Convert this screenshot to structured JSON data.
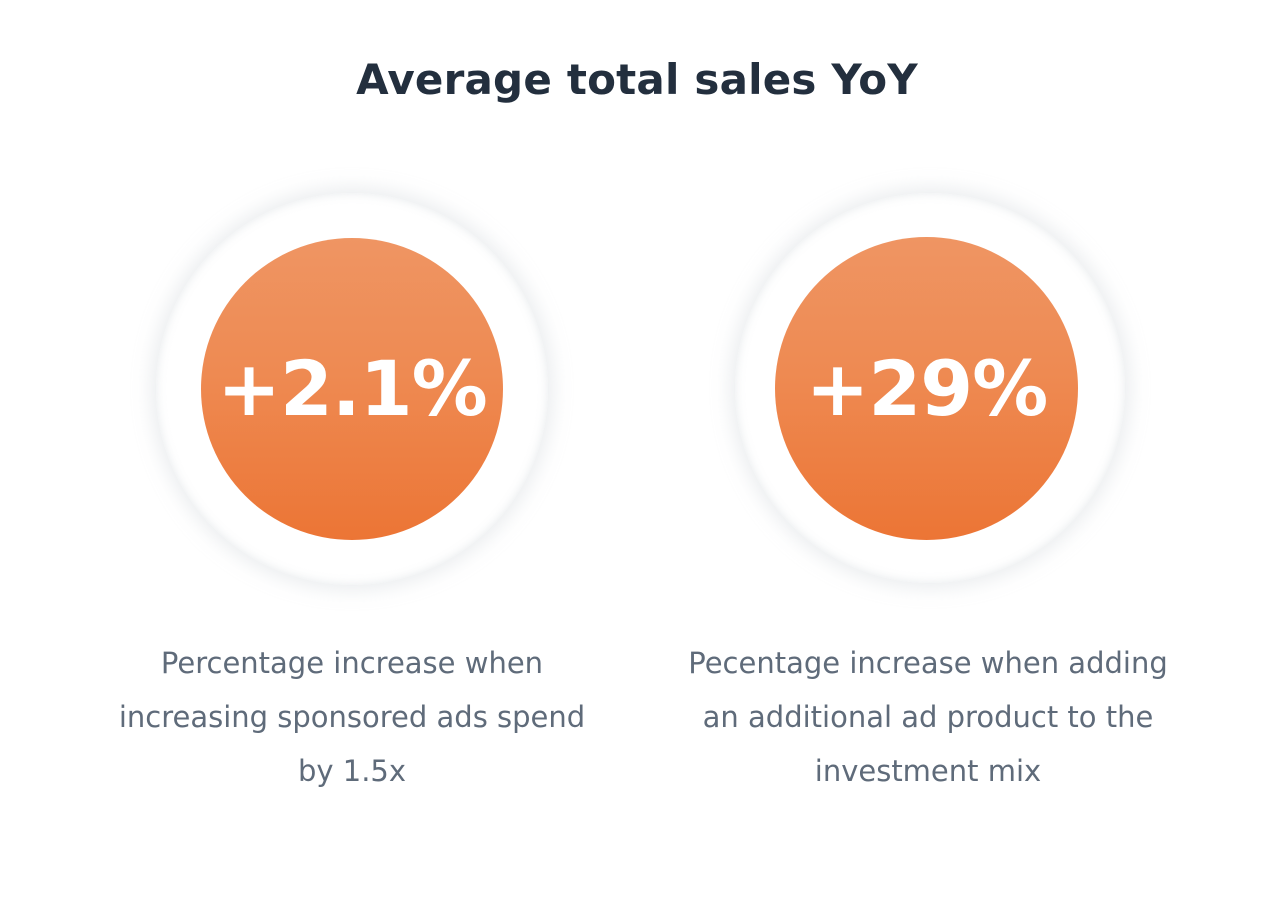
{
  "title": "Average total sales YoY",
  "stats": [
    {
      "value": "+2.1%",
      "caption": "Percentage increase when increasing sponsored ads spend by 1.5x"
    },
    {
      "value": "+29%",
      "caption": "Pecentage increase when adding an additional ad product to the investment mix"
    }
  ],
  "colors": {
    "title": "#232f3e",
    "accent_top": "#ef9563",
    "accent_bottom": "#ec7535",
    "caption": "#5f6b7a"
  }
}
